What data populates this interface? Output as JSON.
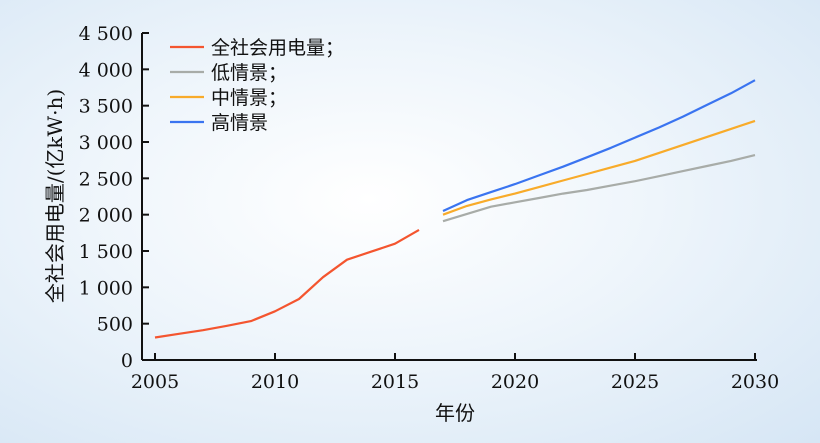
{
  "chart_data": {
    "type": "line",
    "title": "",
    "xlabel": "年份",
    "ylabel": "全社会用电量/(亿kW·h)",
    "xlim": [
      2005,
      2030
    ],
    "ylim": [
      0,
      4500
    ],
    "xticks": [
      "2005",
      "2010",
      "2015",
      "2020",
      "2025",
      "2030"
    ],
    "yticks": [
      "0",
      "500",
      "1 000",
      "1 500",
      "2 000",
      "2 500",
      "3 000",
      "3 500",
      "4 000",
      "4 500"
    ],
    "legend_position": "top-left",
    "series": [
      {
        "name": "全社会用电量；",
        "color": "#f4552f",
        "x": [
          2005,
          2006,
          2007,
          2008,
          2009,
          2010,
          2011,
          2012,
          2013,
          2014,
          2015,
          2016
        ],
        "y": [
          310,
          360,
          410,
          470,
          535,
          670,
          840,
          1140,
          1380,
          1490,
          1600,
          1790
        ]
      },
      {
        "name": "低情景；",
        "color": "#a8aca8",
        "x": [
          2017,
          2018,
          2019,
          2020,
          2021,
          2022,
          2023,
          2024,
          2025,
          2026,
          2027,
          2028,
          2029,
          2030
        ],
        "y": [
          1910,
          2010,
          2110,
          2170,
          2230,
          2290,
          2340,
          2400,
          2460,
          2530,
          2600,
          2670,
          2740,
          2820
        ]
      },
      {
        "name": "中情景；",
        "color": "#f8ab2a",
        "x": [
          2017,
          2018,
          2019,
          2020,
          2021,
          2022,
          2023,
          2024,
          2025,
          2026,
          2027,
          2028,
          2029,
          2030
        ],
        "y": [
          2000,
          2120,
          2210,
          2290,
          2380,
          2470,
          2560,
          2650,
          2740,
          2850,
          2960,
          3070,
          3180,
          3290
        ]
      },
      {
        "name": "高情景",
        "color": "#3a74f0",
        "x": [
          2017,
          2018,
          2019,
          2020,
          2021,
          2022,
          2023,
          2024,
          2025,
          2026,
          2027,
          2028,
          2029,
          2030
        ],
        "y": [
          2050,
          2200,
          2310,
          2420,
          2540,
          2660,
          2790,
          2920,
          3060,
          3200,
          3350,
          3510,
          3670,
          3850
        ]
      }
    ]
  }
}
